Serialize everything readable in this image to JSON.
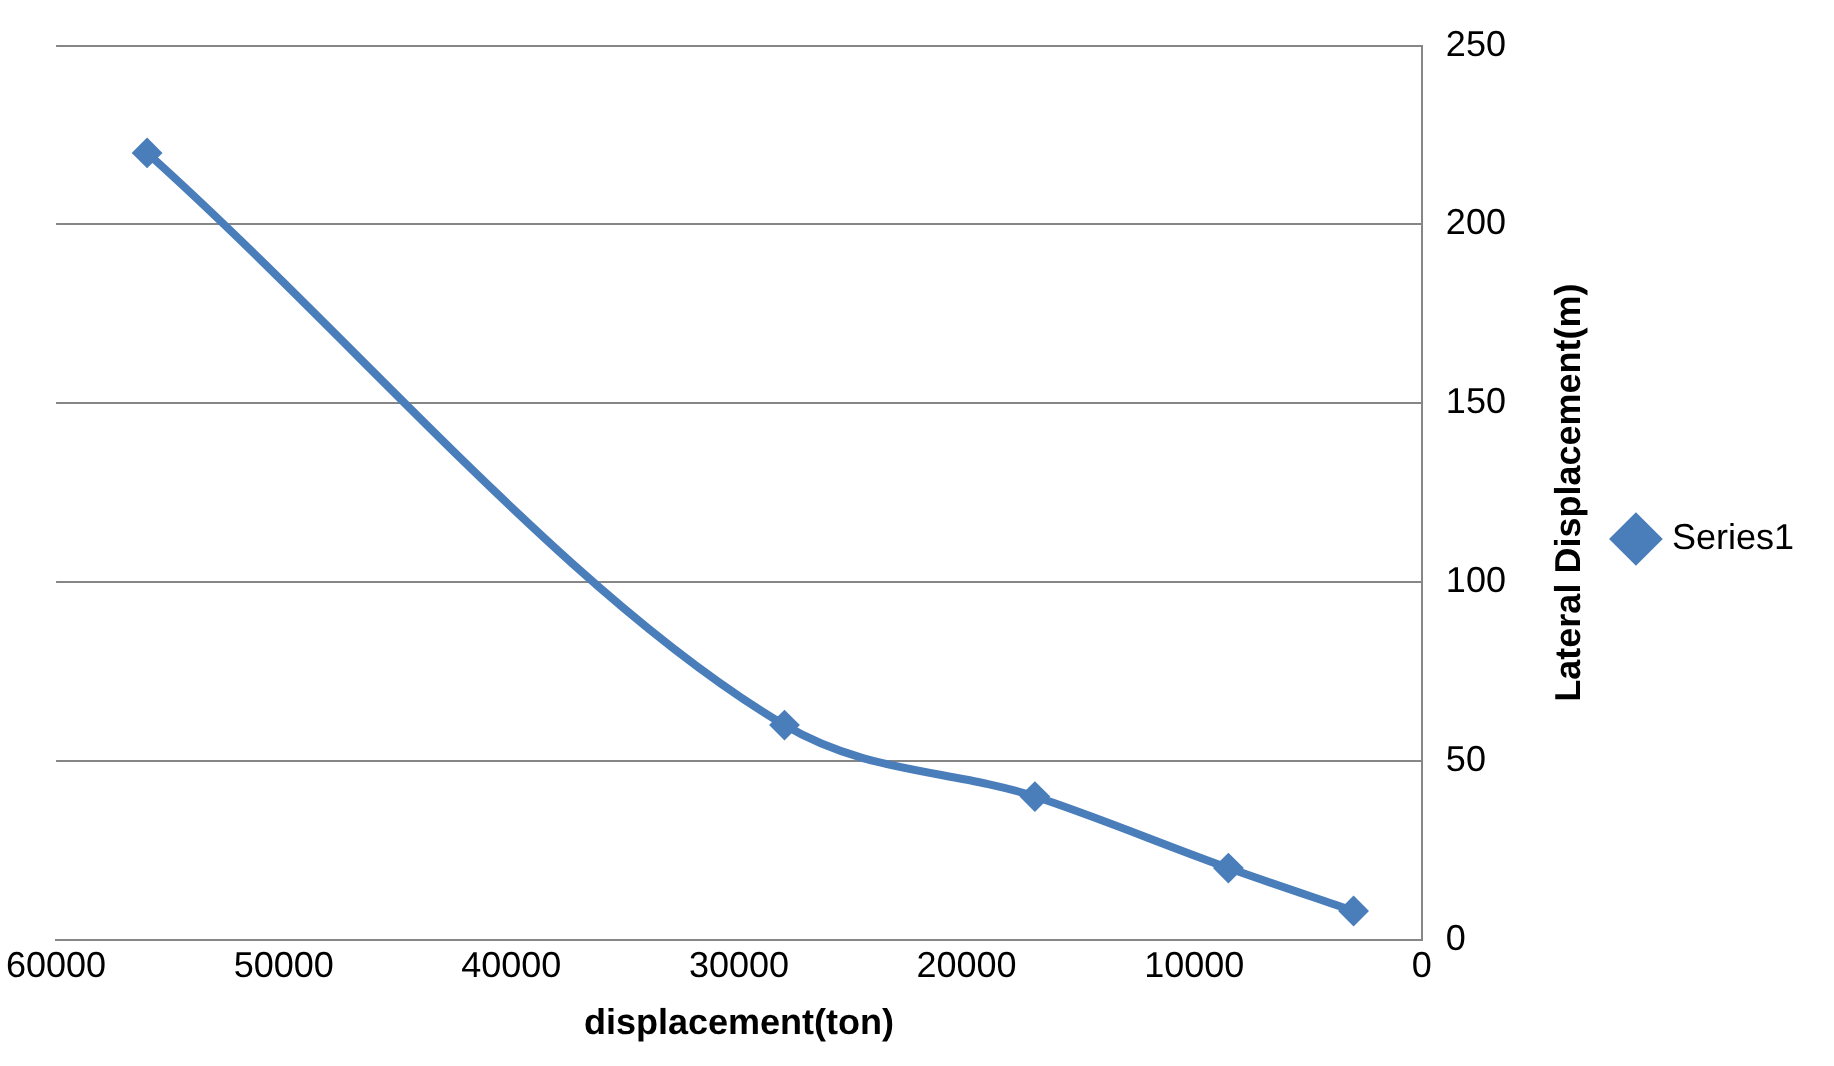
{
  "chart_data": {
    "type": "line",
    "xlabel": "displacement(ton)",
    "ylabel": "Lateral Displacement(m)",
    "x": [
      56000,
      28000,
      17000,
      8500,
      3000
    ],
    "series": [
      {
        "name": "Series1",
        "color": "#4a7ebb",
        "values": [
          220,
          60,
          40,
          20,
          8
        ]
      }
    ],
    "xlim": [
      60000,
      0
    ],
    "xticks": [
      60000,
      50000,
      40000,
      30000,
      20000,
      10000,
      0
    ],
    "ylim": [
      0,
      250
    ],
    "yticks": [
      0,
      50,
      100,
      150,
      200,
      250
    ],
    "grid": "y",
    "legend": "right",
    "marker": "diamond",
    "line_style": "solid"
  }
}
